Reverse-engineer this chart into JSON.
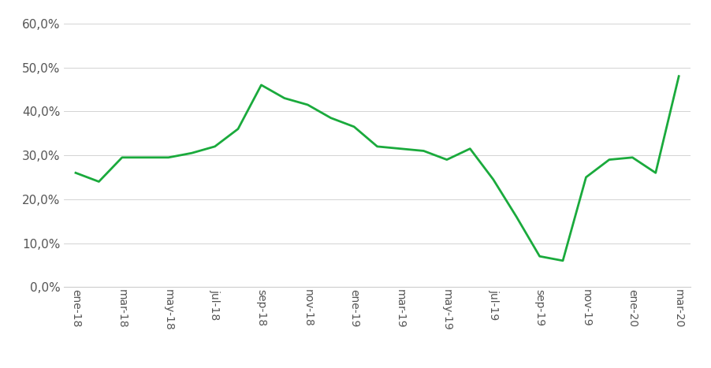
{
  "months": [
    "ene-18",
    "feb-18",
    "mar-18",
    "abr-18",
    "may-18",
    "jun-18",
    "jul-18",
    "ago-18",
    "sep-18",
    "oct-18",
    "nov-18",
    "dic-18",
    "ene-19",
    "feb-19",
    "mar-19",
    "abr-19",
    "may-19",
    "jun-19",
    "jul-19",
    "ago-19",
    "sep-19",
    "oct-19",
    "nov-19",
    "dic-19",
    "ene-20",
    "feb-20",
    "mar-20"
  ],
  "yvals": [
    26.0,
    24.0,
    29.5,
    29.5,
    29.5,
    30.5,
    32.0,
    36.0,
    46.0,
    43.0,
    41.5,
    38.5,
    36.5,
    32.0,
    31.5,
    31.0,
    29.0,
    31.5,
    24.5,
    16.0,
    7.0,
    6.0,
    25.0,
    29.0,
    29.5,
    26.0,
    48.0
  ],
  "tick_labels": [
    "ene-18",
    "mar-18",
    "may-18",
    "jul-18",
    "sep-18",
    "nov-18",
    "ene-19",
    "mar-19",
    "may-19",
    "jul-19",
    "sep-19",
    "nov-19",
    "ene-20",
    "mar-20"
  ],
  "line_color": "#1aaa3c",
  "line_width": 2.0,
  "ylim": [
    0,
    62
  ],
  "yticks": [
    0,
    10,
    20,
    30,
    40,
    50,
    60
  ],
  "background_color": "#ffffff",
  "grid_color": "#cccccc",
  "tick_fontsize": 11,
  "tick_color": "#555555",
  "spine_bottom_color": "#cccccc"
}
